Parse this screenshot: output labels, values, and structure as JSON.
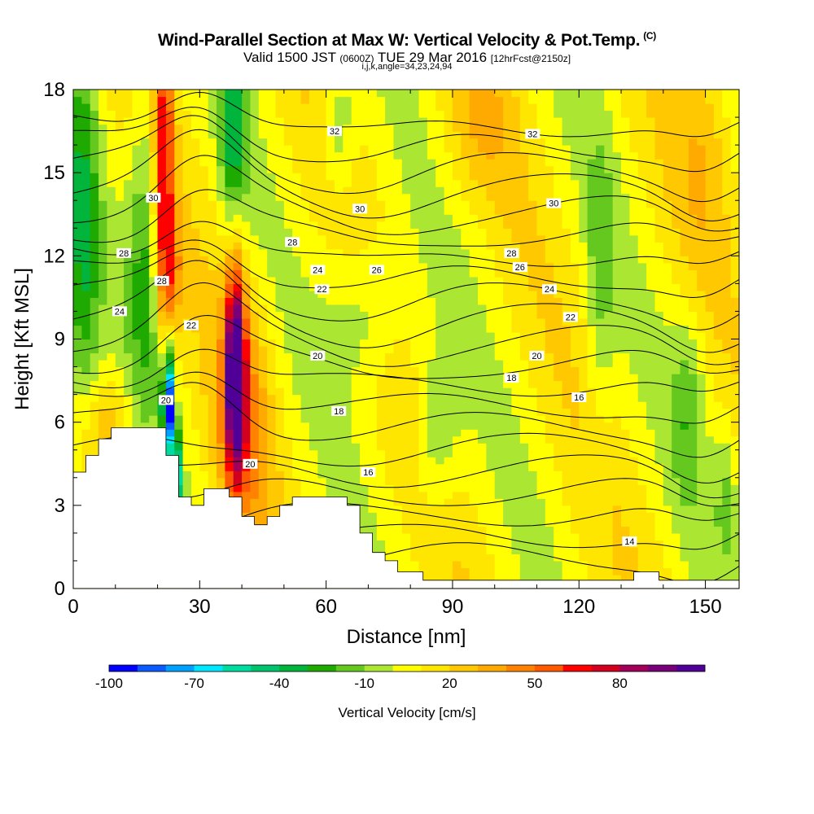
{
  "header": {
    "title": "Wind-Parallel Section at Max W: Vertical Velocity & Pot.Temp.",
    "copyright": "(C)",
    "valid_prefix": "Valid 1500 JST",
    "valid_utc": "(0600Z)",
    "valid_date": "TUE 29 Mar 2016",
    "forecast": "[12hrFcst@2150z]",
    "indices": "i,j,k,angle=34,23,24,94"
  },
  "chart_data": {
    "type": "heatmap",
    "title": "Wind-Parallel Section at Max W: Vertical Velocity & Pot.Temp.",
    "xlabel": "Distance [nm]",
    "ylabel": "Height [Kft MSL]",
    "xlim": [
      0,
      158
    ],
    "ylim": [
      0,
      18
    ],
    "x_ticks": [
      0,
      30,
      60,
      90,
      120,
      150
    ],
    "y_ticks": [
      0,
      3,
      6,
      9,
      12,
      15,
      18
    ],
    "colorbar": {
      "label": "Vertical Velocity [cm/s]",
      "ticks": [
        -100,
        -70,
        -40,
        -10,
        20,
        50,
        80
      ],
      "colors": [
        "#0000ff",
        "#0a5aff",
        "#00a0ff",
        "#00e6ff",
        "#00dca0",
        "#00c36e",
        "#00b43c",
        "#1eaa00",
        "#64c81e",
        "#aae632",
        "#ffff00",
        "#ffe600",
        "#ffc800",
        "#ffaa00",
        "#ff8200",
        "#ff5a00",
        "#ff0000",
        "#d2001e",
        "#a0005a",
        "#780078",
        "#500096"
      ]
    },
    "theta_contours": {
      "units": "deg C potential temperature",
      "labels": [
        {
          "value": 32,
          "x": 62,
          "y": 16.5
        },
        {
          "value": 32,
          "x": 109,
          "y": 16.4
        },
        {
          "value": 30,
          "x": 19,
          "y": 14.1
        },
        {
          "value": 30,
          "x": 68,
          "y": 13.7
        },
        {
          "value": 30,
          "x": 114,
          "y": 13.9
        },
        {
          "value": 28,
          "x": 12,
          "y": 12.1
        },
        {
          "value": 28,
          "x": 52,
          "y": 12.5
        },
        {
          "value": 28,
          "x": 104,
          "y": 12.1
        },
        {
          "value": 28,
          "x": 21,
          "y": 11.1
        },
        {
          "value": 26,
          "x": 72,
          "y": 11.5
        },
        {
          "value": 26,
          "x": 106,
          "y": 11.6
        },
        {
          "value": 24,
          "x": 58,
          "y": 11.5
        },
        {
          "value": 24,
          "x": 11,
          "y": 10.0
        },
        {
          "value": 24,
          "x": 113,
          "y": 10.8
        },
        {
          "value": 22,
          "x": 59,
          "y": 10.8
        },
        {
          "value": 22,
          "x": 28,
          "y": 9.5
        },
        {
          "value": 22,
          "x": 118,
          "y": 9.8
        },
        {
          "value": 20,
          "x": 58,
          "y": 8.4
        },
        {
          "value": 20,
          "x": 110,
          "y": 8.4
        },
        {
          "value": 20,
          "x": 22,
          "y": 6.8
        },
        {
          "value": 20,
          "x": 42,
          "y": 4.5
        },
        {
          "value": 18,
          "x": 63,
          "y": 6.4
        },
        {
          "value": 18,
          "x": 104,
          "y": 7.6
        },
        {
          "value": 16,
          "x": 70,
          "y": 4.2
        },
        {
          "value": 16,
          "x": 120,
          "y": 6.9
        },
        {
          "value": 14,
          "x": 132,
          "y": 1.7
        }
      ]
    },
    "vertical_velocity_features": [
      {
        "kind": "updraft core",
        "x": 22,
        "y_range": [
          11,
          18
        ],
        "peak": 50
      },
      {
        "kind": "updraft core",
        "x": 39,
        "y_range": [
          4,
          11
        ],
        "peak": 90
      },
      {
        "kind": "downdraft core",
        "x": 23,
        "y_range": [
          5,
          8
        ],
        "peak": -100
      },
      {
        "kind": "downdraft",
        "x": 38,
        "y_range": [
          14,
          18
        ],
        "peak": -40
      }
    ],
    "terrain_kft": [
      [
        0,
        4.2
      ],
      [
        3,
        4.2
      ],
      [
        3,
        4.8
      ],
      [
        6,
        4.8
      ],
      [
        6,
        5.4
      ],
      [
        9,
        5.4
      ],
      [
        9,
        5.8
      ],
      [
        22,
        5.8
      ],
      [
        22,
        4.8
      ],
      [
        25,
        4.8
      ],
      [
        25,
        3.3
      ],
      [
        28,
        3.3
      ],
      [
        28,
        3.0
      ],
      [
        31,
        3.0
      ],
      [
        31,
        3.6
      ],
      [
        37,
        3.6
      ],
      [
        37,
        3.3
      ],
      [
        40,
        3.3
      ],
      [
        40,
        2.6
      ],
      [
        43,
        2.6
      ],
      [
        43,
        2.3
      ],
      [
        46,
        2.3
      ],
      [
        46,
        2.6
      ],
      [
        49,
        2.6
      ],
      [
        49,
        3.0
      ],
      [
        52,
        3.0
      ],
      [
        52,
        3.3
      ],
      [
        65,
        3.3
      ],
      [
        65,
        3.0
      ],
      [
        68,
        3.0
      ],
      [
        68,
        2.0
      ],
      [
        71,
        2.0
      ],
      [
        71,
        1.3
      ],
      [
        74,
        1.3
      ],
      [
        74,
        1.0
      ],
      [
        77,
        1.0
      ],
      [
        77,
        0.6
      ],
      [
        83,
        0.6
      ],
      [
        83,
        0.3
      ],
      [
        133,
        0.3
      ],
      [
        133,
        0.6
      ],
      [
        139,
        0.6
      ],
      [
        139,
        0.3
      ],
      [
        158,
        0.3
      ]
    ]
  },
  "colors": {
    "background": "#ffffff",
    "frame": "#000000",
    "contour": "#000000",
    "terrain": "#ffffff"
  }
}
